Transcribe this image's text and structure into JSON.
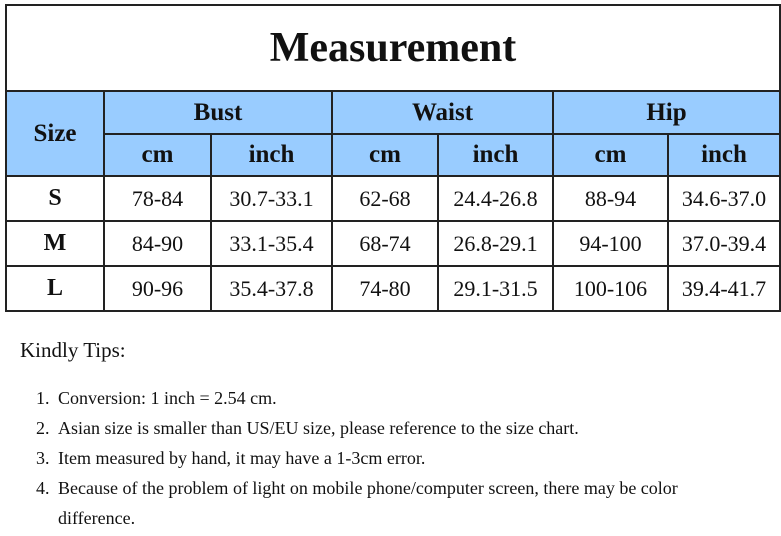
{
  "title": "Measurement",
  "headers": {
    "size": "Size",
    "groups": [
      "Bust",
      "Waist",
      "Hip"
    ],
    "units": [
      "cm",
      "inch",
      "cm",
      "inch",
      "cm",
      "inch"
    ]
  },
  "rows": [
    {
      "size": "S",
      "values": [
        "78-84",
        "30.7-33.1",
        "62-68",
        "24.4-26.8",
        "88-94",
        "34.6-37.0"
      ]
    },
    {
      "size": "M",
      "values": [
        "84-90",
        "33.1-35.4",
        "68-74",
        "26.8-29.1",
        "94-100",
        "37.0-39.4"
      ]
    },
    {
      "size": "L",
      "values": [
        "90-96",
        "35.4-37.8",
        "74-80",
        "29.1-31.5",
        "100-106",
        "39.4-41.7"
      ]
    }
  ],
  "tips": {
    "heading": "Kindly Tips:",
    "items": [
      "Conversion: 1 inch = 2.54 cm.",
      "Asian size is smaller than US/EU size, please reference to the size chart.",
      "Item measured by hand, it may have a 1-3cm error.",
      "Because of the problem of light on mobile phone/computer screen, there may be color difference."
    ]
  },
  "colors": {
    "header_bg": "#99ccff"
  }
}
